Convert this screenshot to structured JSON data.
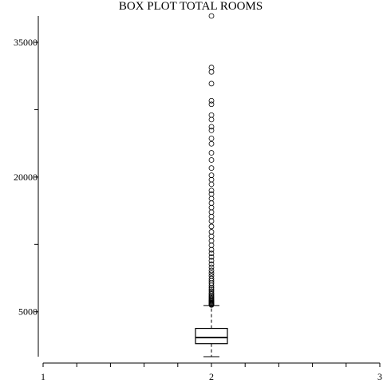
{
  "chart_data": {
    "type": "box",
    "title": "BOX PLOT TOTAL ROOMS",
    "xlabel": "",
    "ylabel": "",
    "xlim": [
      1,
      3
    ],
    "ylim": [
      0,
      37937
    ],
    "x_ticks": [
      1,
      1.2,
      1.4,
      1.6,
      1.8,
      2,
      2.2,
      2.4,
      2.6,
      2.8,
      3
    ],
    "x_tick_labels": [
      "1",
      "",
      "",
      "",
      "",
      "2",
      "",
      "",
      "",
      "",
      "3"
    ],
    "y_ticks": [
      5000,
      12500,
      20000,
      27500,
      35000
    ],
    "y_tick_labels": [
      "5000",
      "",
      "20000",
      "",
      "35000"
    ],
    "grid": false,
    "series": [
      {
        "position": 2,
        "whisker_low": 2,
        "q1": 1448,
        "median": 2127,
        "q3": 3148,
        "whisker_high": 5698,
        "outliers": [
          5750,
          5800,
          5870,
          5950,
          6030,
          6120,
          6200,
          6300,
          6400,
          6520,
          6650,
          6800,
          6950,
          7100,
          7300,
          7500,
          7700,
          7950,
          8200,
          8450,
          8700,
          9000,
          9300,
          9600,
          9950,
          10300,
          10700,
          11100,
          11500,
          11900,
          12400,
          12900,
          13400,
          13900,
          14500,
          15100,
          15600,
          16100,
          16600,
          17100,
          17600,
          18100,
          18500,
          19200,
          19700,
          20200,
          21000,
          21900,
          22700,
          23700,
          24300,
          25200,
          25600,
          26400,
          26900,
          28100,
          28500,
          30400,
          31700,
          32200,
          37937
        ]
      }
    ]
  }
}
